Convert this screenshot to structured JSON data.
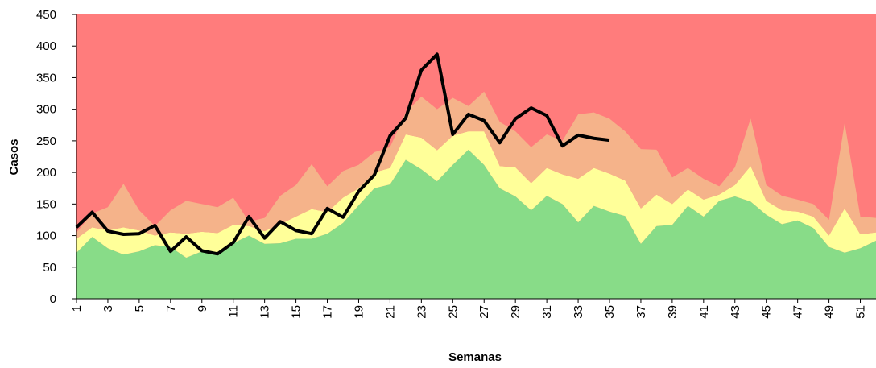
{
  "chart_data": {
    "type": "area",
    "x": [
      1,
      2,
      3,
      4,
      5,
      6,
      7,
      8,
      9,
      10,
      11,
      12,
      13,
      14,
      15,
      16,
      17,
      18,
      19,
      20,
      21,
      22,
      23,
      24,
      25,
      26,
      27,
      28,
      29,
      30,
      31,
      32,
      33,
      34,
      35,
      36,
      37,
      38,
      39,
      40,
      41,
      42,
      43,
      44,
      45,
      46,
      47,
      48,
      49,
      50,
      51,
      52
    ],
    "xlim": [
      1,
      52
    ],
    "xticks": [
      1,
      3,
      5,
      7,
      9,
      11,
      13,
      15,
      17,
      19,
      21,
      23,
      25,
      27,
      29,
      31,
      33,
      35,
      37,
      39,
      41,
      43,
      45,
      47,
      49,
      51
    ],
    "ylim": [
      0,
      450
    ],
    "yticks": [
      0,
      50,
      100,
      150,
      200,
      250,
      300,
      350,
      400,
      450
    ],
    "x_label": "Semanas",
    "y_label": "Casos",
    "plot_color": "#ff7c7c",
    "stacked": true,
    "series": [
      {
        "color": "#88dc88",
        "values": [
          73,
          98,
          80,
          70,
          75,
          85,
          82,
          65,
          75,
          70,
          88,
          100,
          87,
          88,
          95,
          95,
          103,
          120,
          148,
          175,
          181,
          220,
          205,
          186,
          212,
          236,
          212,
          175,
          162,
          140,
          163,
          150,
          121,
          147,
          138,
          131,
          87,
          115,
          117,
          147,
          130,
          155,
          162,
          154,
          133,
          118,
          124,
          112,
          82,
          73,
          80,
          92
        ]
      },
      {
        "color": "#ffff99",
        "values": [
          22,
          15,
          28,
          43,
          33,
          15,
          23,
          38,
          31,
          34,
          29,
          15,
          20,
          30,
          35,
          47,
          34,
          40,
          27,
          25,
          26,
          40,
          50,
          49,
          46,
          29,
          53,
          35,
          46,
          43,
          44,
          47,
          69,
          60,
          60,
          56,
          56,
          50,
          33,
          26,
          27,
          10,
          18,
          56,
          22,
          22,
          14,
          18,
          18,
          70,
          22,
          13
        ]
      },
      {
        "color": "#f5b38a",
        "values": [
          10,
          22,
          37,
          69,
          32,
          15,
          35,
          52,
          44,
          41,
          43,
          7,
          21,
          45,
          50,
          71,
          41,
          42,
          37,
          32,
          33,
          35,
          65,
          65,
          60,
          40,
          63,
          70,
          57,
          57,
          53,
          53,
          102,
          88,
          87,
          78,
          94,
          71,
          42,
          34,
          33,
          13,
          28,
          75,
          25,
          23,
          19,
          20,
          25,
          135,
          28,
          23
        ]
      },
      {
        "color": "#000000",
        "type": "line",
        "values": [
          113,
          137,
          107,
          102,
          103,
          116,
          75,
          98,
          76,
          71,
          89,
          130,
          96,
          122,
          108,
          103,
          143,
          129,
          170,
          196,
          258,
          286,
          362,
          387,
          260,
          292,
          282,
          247,
          285,
          302,
          290,
          242,
          259,
          254,
          251,
          null,
          null,
          null,
          null,
          null,
          null,
          null,
          null,
          null,
          null,
          null,
          null,
          null,
          null,
          null,
          null,
          null
        ]
      }
    ]
  }
}
